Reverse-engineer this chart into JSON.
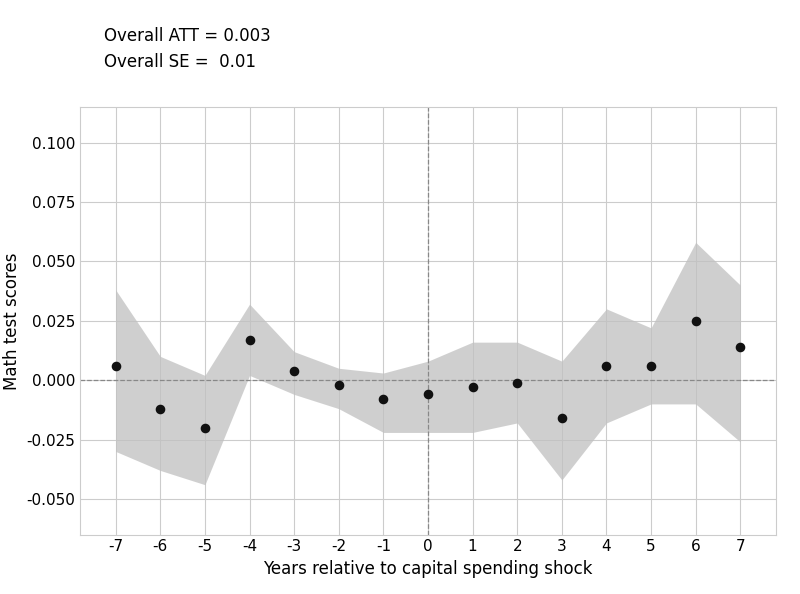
{
  "years": [
    -7,
    -6,
    -5,
    -4,
    -3,
    -2,
    -1,
    0,
    1,
    2,
    3,
    4,
    5,
    6,
    7
  ],
  "point_estimates": [
    0.006,
    -0.012,
    -0.02,
    0.017,
    0.004,
    -0.002,
    -0.008,
    -0.006,
    -0.003,
    -0.001,
    -0.016,
    0.006,
    0.006,
    0.025,
    0.014
  ],
  "ci_upper": [
    0.038,
    0.01,
    0.002,
    0.032,
    0.012,
    0.005,
    0.003,
    0.008,
    0.016,
    0.016,
    0.008,
    0.03,
    0.022,
    0.058,
    0.04
  ],
  "ci_lower": [
    -0.03,
    -0.038,
    -0.044,
    0.002,
    -0.006,
    -0.012,
    -0.022,
    -0.022,
    -0.022,
    -0.018,
    -0.042,
    -0.018,
    -0.01,
    -0.01,
    -0.026
  ],
  "att_text": "Overall ATT = 0.003",
  "se_text": "Overall SE =  0.01",
  "xlabel": "Years relative to capital spending shock",
  "ylabel": "Math test scores",
  "ylim": [
    -0.065,
    0.115
  ],
  "yticks": [
    -0.05,
    -0.025,
    0.0,
    0.025,
    0.05,
    0.075,
    0.1
  ],
  "xlim": [
    -7.8,
    7.8
  ],
  "vline_x": 0,
  "hline_y": 0.0,
  "ci_color": "#c0c0c0",
  "ci_alpha": 0.75,
  "point_color": "#111111",
  "point_size": 35,
  "bg_color": "#ffffff",
  "grid_color": "#cccccc",
  "annotation_fontsize": 12,
  "axis_fontsize": 12,
  "tick_fontsize": 11
}
